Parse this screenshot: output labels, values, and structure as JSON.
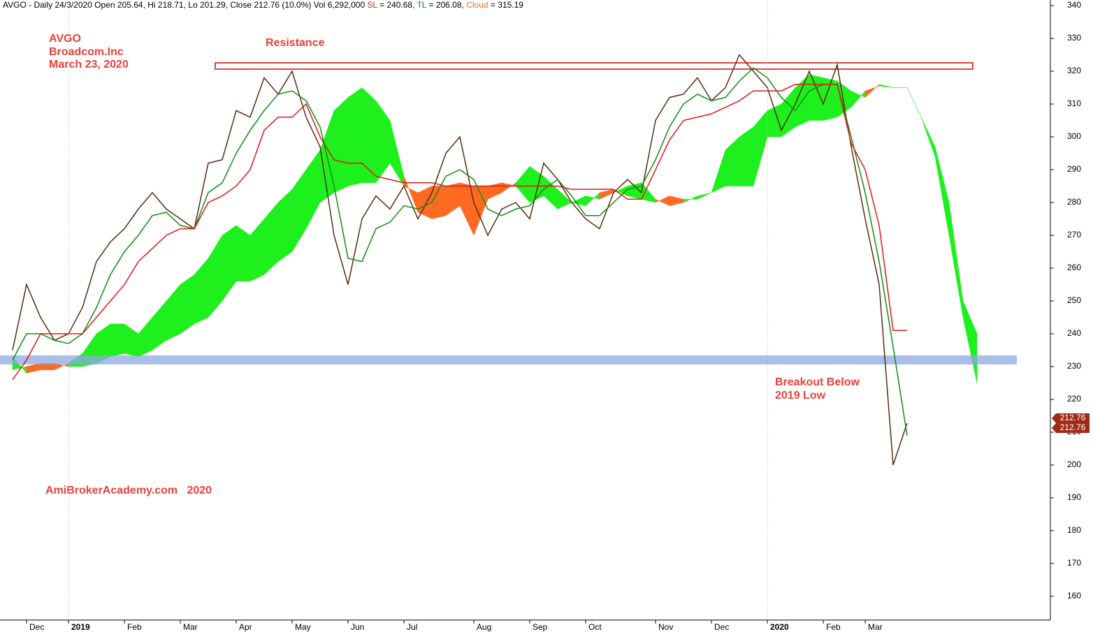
{
  "chart_data": {
    "type": "ichimoku",
    "header": {
      "prefix": "AVGO - Daily 24/3/2020 Open 205.64, Hi 218.71, Lo 201.29, Close 212.76 (10.0%) Vol 6,292,000",
      "sl_label": "SL",
      "sl_value": "= 240.68,",
      "tl_label": "TL",
      "tl_value": "= 206.08,",
      "cloud_label": "Cloud",
      "cloud_value": "= 315.19"
    },
    "annotations": {
      "ticker": "AVGO",
      "company": "Broadcom.Inc",
      "date": "March 23, 2020",
      "resistance": "Resistance",
      "breakout_1": "Breakout Below",
      "breakout_2": "2019 Low",
      "source": "AmiBrokerAcademy.com   2020"
    },
    "categories": [
      null,
      "Dec",
      null,
      null,
      "2019",
      null,
      null,
      null,
      "Feb",
      null,
      null,
      null,
      "Mar",
      null,
      null,
      null,
      "Apr",
      null,
      null,
      null,
      "May",
      null,
      null,
      null,
      "Jun",
      null,
      null,
      null,
      "Jul",
      null,
      null,
      null,
      null,
      "Aug",
      null,
      null,
      null,
      "Sep",
      null,
      null,
      null,
      "Oct",
      null,
      null,
      null,
      null,
      "Nov",
      null,
      null,
      null,
      "Dec",
      null,
      null,
      null,
      "2020",
      null,
      null,
      null,
      "Feb",
      null,
      null,
      "Mar",
      null,
      null,
      null,
      null,
      null,
      null,
      null,
      null
    ],
    "price": {
      "color": "#5a2a10",
      "values": [
        235,
        255,
        245,
        238,
        240,
        248,
        262,
        268,
        272,
        278,
        283,
        278,
        275,
        272,
        292,
        293,
        308,
        306,
        318,
        313,
        320,
        306,
        297,
        270,
        255,
        275,
        282,
        278,
        285,
        275,
        283,
        295,
        300,
        280,
        270,
        278,
        280,
        275,
        292,
        287,
        280,
        275,
        272,
        283,
        287,
        283,
        305,
        312,
        313,
        318,
        311,
        315,
        325,
        320,
        315,
        302,
        310,
        320,
        310,
        322,
        297,
        275,
        255,
        200,
        212.76,
        null,
        null,
        null,
        null,
        null
      ]
    },
    "series": [
      {
        "color": "#0c8f0c",
        "values": [
          232,
          240,
          240,
          238,
          237,
          240,
          248,
          258,
          265,
          270,
          276,
          277,
          273,
          272,
          283,
          286,
          295,
          302,
          308,
          313,
          314,
          311,
          303,
          285,
          263,
          262,
          272,
          274,
          279,
          278,
          280,
          288,
          290,
          287,
          278,
          276,
          278,
          279,
          284,
          287,
          282,
          276,
          276,
          280,
          284,
          285,
          293,
          303,
          310,
          313,
          311,
          312,
          317,
          321,
          318,
          312,
          308,
          314,
          316,
          316,
          300,
          283,
          262,
          236,
          209,
          null,
          null,
          null,
          null,
          null
        ]
      },
      {
        "color": "#e01818",
        "values": [
          226,
          232,
          240,
          240,
          240,
          240,
          245,
          250,
          255,
          262,
          266,
          270,
          272,
          272,
          280,
          282,
          285,
          290,
          302,
          306,
          306,
          310,
          300,
          293,
          292,
          292,
          288,
          287,
          286,
          286,
          286,
          285,
          285,
          285,
          285,
          285,
          285,
          285,
          285,
          285,
          284,
          284,
          284,
          284,
          281,
          281,
          290,
          299,
          305,
          306,
          307,
          309,
          311,
          314,
          314,
          314,
          316,
          316,
          316,
          316,
          298,
          290,
          273,
          241,
          241,
          null,
          null,
          null,
          null,
          null
        ]
      }
    ],
    "cloud_a": [
      233,
      228,
      229,
      229,
      231,
      234,
      240,
      243,
      243,
      240,
      245,
      250,
      255,
      258,
      263,
      270,
      273,
      270,
      275,
      280,
      284,
      290,
      296,
      308,
      312,
      315,
      311,
      305,
      288,
      277,
      275,
      276,
      279,
      270,
      281,
      283,
      286,
      291,
      288,
      284,
      280,
      282,
      281,
      283,
      285,
      286,
      281,
      279,
      280,
      282,
      283,
      296,
      300,
      303,
      308,
      310,
      315,
      319,
      318,
      317,
      314,
      312,
      316,
      315,
      315,
      306,
      297,
      280,
      250,
      240
    ],
    "cloud_b": [
      229,
      230,
      231,
      231,
      230,
      230,
      231,
      233,
      234,
      233,
      235,
      238,
      240,
      243,
      245,
      250,
      256,
      256,
      258,
      262,
      265,
      272,
      280,
      283,
      285,
      286,
      286,
      292,
      285,
      283,
      285,
      285,
      286,
      285,
      285,
      286,
      285,
      280,
      282,
      278,
      280,
      279,
      283,
      284,
      282,
      281,
      280,
      282,
      281,
      281,
      283,
      285,
      285,
      285,
      300,
      300,
      303,
      305,
      305,
      306,
      309,
      314,
      315.5,
      315,
      315,
      306,
      294,
      270,
      245,
      225
    ],
    "cloud_colors": {
      "up": "#1ef01e",
      "down": "#ff6a22"
    },
    "price_tags": [
      "212.76",
      "212.76"
    ],
    "ylim": [
      153.4,
      341.7
    ],
    "yticks": [
      160,
      170,
      180,
      190,
      200,
      210,
      220,
      230,
      240,
      250,
      260,
      270,
      280,
      290,
      300,
      310,
      320,
      330,
      340
    ],
    "grid": false
  }
}
